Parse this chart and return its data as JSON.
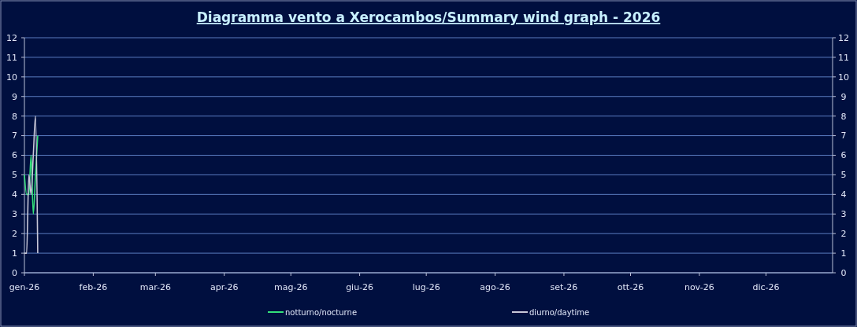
{
  "chart_data": {
    "type": "line",
    "title": "Diagramma vento a Xerocambos/Summary wind graph - 2026",
    "x": [
      "2026-01-01",
      "2026-01-02",
      "2026-01-03",
      "2026-01-04",
      "2026-01-05",
      "2026-01-06",
      "2026-01-07"
    ],
    "series": [
      {
        "name": "notturno/nocturne",
        "color": "#33e07a",
        "values": [
          5,
          4,
          4,
          6,
          3,
          5,
          7
        ]
      },
      {
        "name": "diurno/daytime",
        "color": "#c8c8d8",
        "values": [
          1,
          1,
          5,
          4,
          6,
          8,
          1
        ]
      }
    ],
    "xlim": [
      "2026-01-01",
      "2026-12-31"
    ],
    "xticks": [
      {
        "value": "2026-01-01",
        "label": "gen-26"
      },
      {
        "value": "2026-02-01",
        "label": "feb-26"
      },
      {
        "value": "2026-03-01",
        "label": "mar-26"
      },
      {
        "value": "2026-04-01",
        "label": "apr-26"
      },
      {
        "value": "2026-05-01",
        "label": "mag-26"
      },
      {
        "value": "2026-06-01",
        "label": "giu-26"
      },
      {
        "value": "2026-07-01",
        "label": "lug-26"
      },
      {
        "value": "2026-08-01",
        "label": "ago-26"
      },
      {
        "value": "2026-09-01",
        "label": "set-26"
      },
      {
        "value": "2026-10-01",
        "label": "ott-26"
      },
      {
        "value": "2026-11-01",
        "label": "nov-26"
      },
      {
        "value": "2026-12-01",
        "label": "dic-26"
      }
    ],
    "ylim": [
      0,
      12
    ],
    "yticks": [
      0,
      1,
      2,
      3,
      4,
      5,
      6,
      7,
      8,
      9,
      10,
      11,
      12
    ],
    "y2lim": [
      0,
      12
    ],
    "y2ticks": [
      0,
      1,
      2,
      3,
      4,
      5,
      6,
      7,
      8,
      9,
      10,
      11,
      12
    ],
    "grid": "y",
    "legend": "bottom",
    "marker": "none",
    "line_style": "solid"
  }
}
